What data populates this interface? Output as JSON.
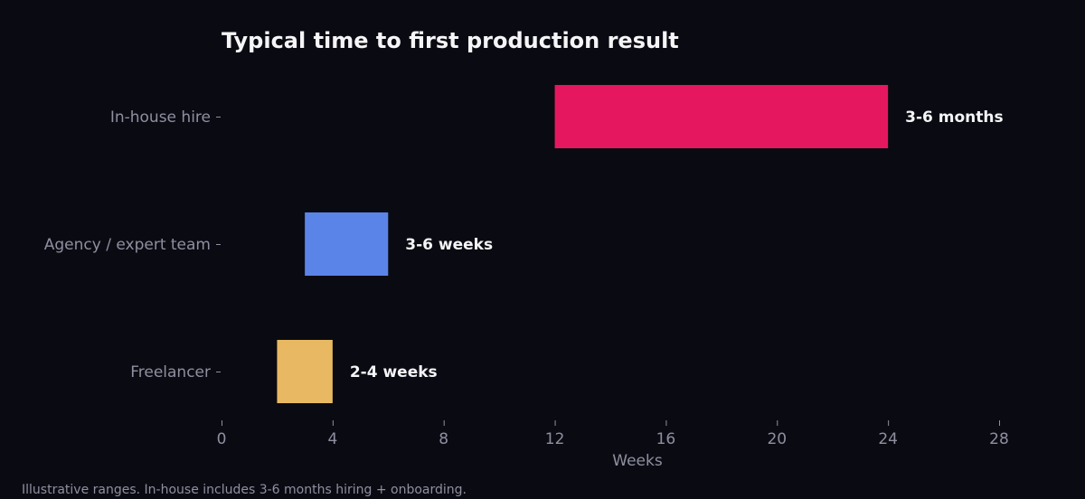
{
  "chart_data": {
    "type": "bar",
    "orientation": "horizontal",
    "title": "Typical time to first production result",
    "xlabel": "Weeks",
    "ylabel": "",
    "xlim": [
      0,
      28
    ],
    "xticks": [
      0,
      4,
      8,
      12,
      16,
      20,
      24,
      28
    ],
    "grid": false,
    "categories": [
      "In-house hire",
      "Agency / expert team",
      "Freelancer"
    ],
    "ranges": [
      {
        "category": "In-house hire",
        "start": 12,
        "end": 24,
        "label": "3-6 months",
        "color": "#e5175f"
      },
      {
        "category": "Agency / expert team",
        "start": 3,
        "end": 6,
        "label": "3-6 weeks",
        "color": "#5b84e8"
      },
      {
        "category": "Freelancer",
        "start": 2,
        "end": 4,
        "label": "2-4 weeks",
        "color": "#e8b962"
      }
    ],
    "footnote": "Illustrative ranges. In-house includes 3-6 months hiring + onboarding."
  },
  "colors": {
    "background": "#0a0b12",
    "text": "#f5f5f7",
    "muted": "#8e8fa0"
  }
}
